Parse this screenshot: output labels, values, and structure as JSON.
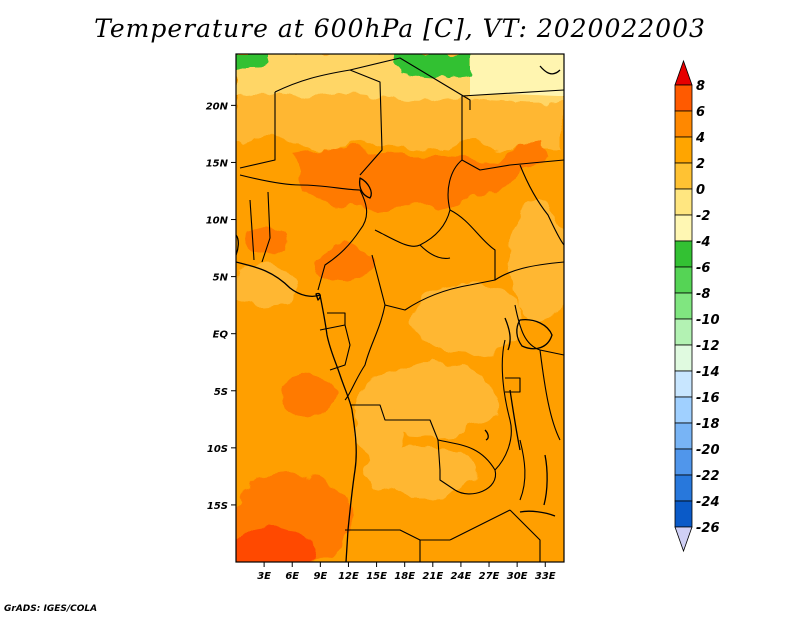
{
  "title": "Temperature at 600hPa [C], VT: 2020022003",
  "credit": "GrADS: IGES/COLA",
  "map": {
    "lon_labels": [
      "3E",
      "6E",
      "9E",
      "12E",
      "15E",
      "18E",
      "21E",
      "24E",
      "27E",
      "30E",
      "33E"
    ],
    "lat_labels": [
      "20N",
      "15N",
      "10N",
      "5N",
      "EQ",
      "5S",
      "10S",
      "15S"
    ],
    "lon_range": [
      0,
      35
    ],
    "lat_range": [
      -20,
      24.5
    ]
  },
  "colorbar": {
    "labels": [
      "8",
      "6",
      "4",
      "2",
      "0",
      "-2",
      "-4",
      "-6",
      "-8",
      "-10",
      "-12",
      "-14",
      "-16",
      "-18",
      "-20",
      "-22",
      "-24",
      "-26"
    ],
    "colors": [
      "#ff2a00",
      "#ff5a00",
      "#ff8800",
      "#ffa500",
      "#ffc233",
      "#ffe680",
      "#fff7b3",
      "#33c133",
      "#55d455",
      "#80e680",
      "#b3f2b3",
      "#e0fae0",
      "#c8e6ff",
      "#a0d0ff",
      "#78b4f5",
      "#5096eb",
      "#2878dc",
      "#0a5ac8",
      "#00369e",
      "#001c6e"
    ],
    "top_arrow_color": "#e60000",
    "bottom_arrow_color": "#d0d0f5"
  }
}
